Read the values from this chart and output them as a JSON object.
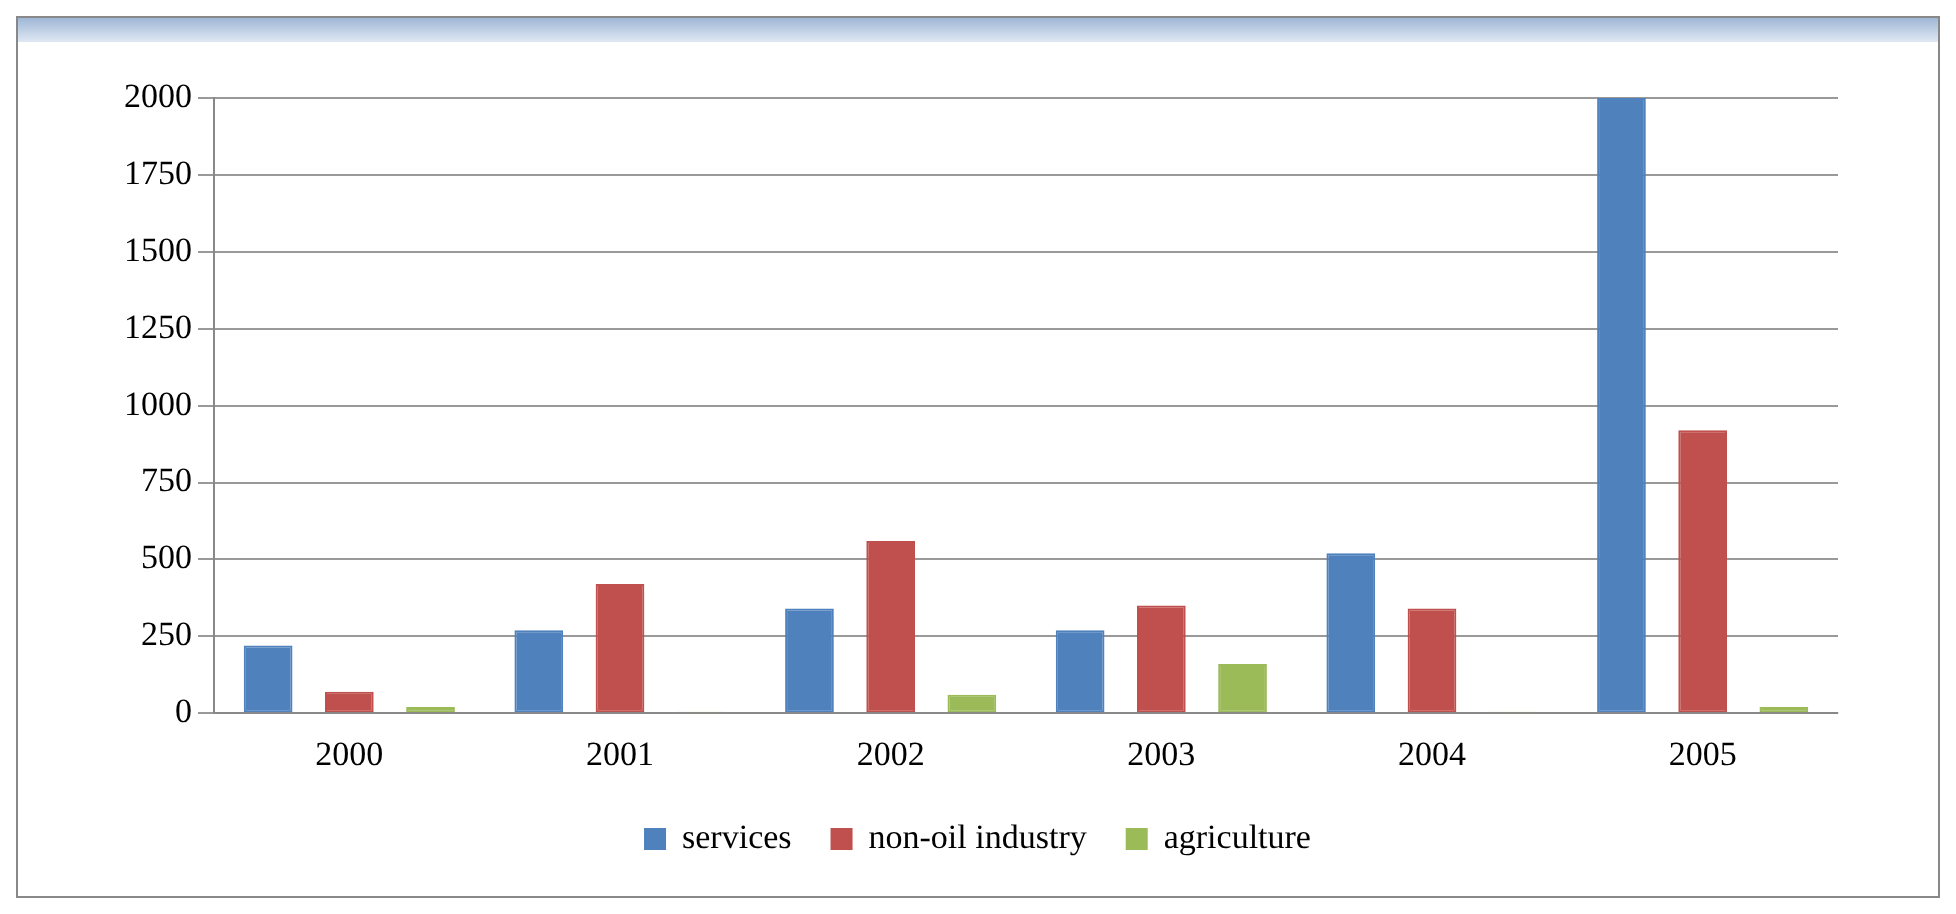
{
  "chart_data": {
    "type": "bar",
    "categories": [
      "2000",
      "2001",
      "2002",
      "2003",
      "2004",
      "2005"
    ],
    "series": [
      {
        "name": "services",
        "color": "#4f81bd",
        "values": [
          220,
          270,
          340,
          270,
          520,
          2000
        ]
      },
      {
        "name": "non-oil industry",
        "color": "#c0504d",
        "values": [
          70,
          420,
          560,
          350,
          340,
          920
        ]
      },
      {
        "name": "agriculture",
        "color": "#9bbb59",
        "values": [
          20,
          5,
          60,
          160,
          5,
          20
        ]
      }
    ],
    "ylim": [
      0,
      2000
    ],
    "yticks": [
      0,
      250,
      500,
      750,
      1000,
      1250,
      1500,
      1750,
      2000
    ],
    "grid": "y",
    "legend": "bottom"
  }
}
